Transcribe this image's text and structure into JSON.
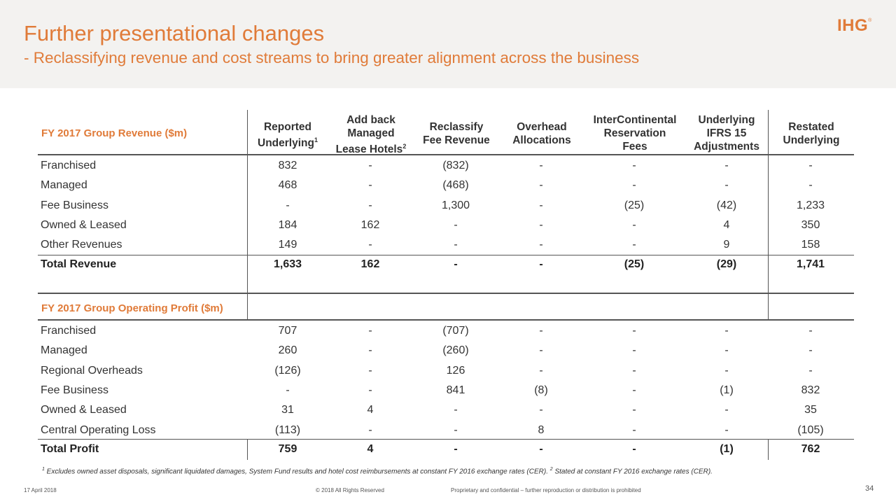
{
  "header": {
    "title": "Further presentational changes",
    "subtitle": "- Reclassifying revenue and cost streams to bring greater alignment across the business",
    "logo_text": "IHG",
    "logo_mark": "®"
  },
  "columns": {
    "reported": {
      "line1": "Reported",
      "line2": "Underlying",
      "sup": "1"
    },
    "addback": {
      "line1": "Add back",
      "line2": "Managed",
      "line3": "Lease Hotels",
      "sup": "2"
    },
    "reclassify": {
      "line1": "Reclassify",
      "line2": "Fee Revenue"
    },
    "overhead": {
      "line1": "Overhead",
      "line2": "Allocations"
    },
    "interconti": {
      "line1": "InterContinental",
      "line2": "Reservation",
      "line3": "Fees"
    },
    "ifrs": {
      "line1": "Underlying",
      "line2": "IFRS 15",
      "line3": "Adjustments"
    },
    "restated": {
      "line1": "Restated",
      "line2": "Underlying"
    }
  },
  "revenue": {
    "title": "FY 2017 Group Revenue ($m)",
    "rows": [
      {
        "label": "Franchised",
        "values": [
          "832",
          "-",
          "(832)",
          "-",
          "-",
          "-",
          "-"
        ]
      },
      {
        "label": "Managed",
        "values": [
          "468",
          "-",
          "(468)",
          "-",
          "-",
          "-",
          "-"
        ]
      },
      {
        "label": "Fee Business",
        "values": [
          "-",
          "-",
          "1,300",
          "-",
          "(25)",
          "(42)",
          "1,233"
        ]
      },
      {
        "label": "Owned & Leased",
        "values": [
          "184",
          "162",
          "-",
          "-",
          "-",
          "4",
          "350"
        ]
      },
      {
        "label": "Other Revenues",
        "values": [
          "149",
          "-",
          "-",
          "-",
          "-",
          "9",
          "158"
        ]
      }
    ],
    "total": {
      "label": "Total Revenue",
      "values": [
        "1,633",
        "162",
        "-",
        "-",
        "(25)",
        "(29)",
        "1,741"
      ]
    }
  },
  "profit": {
    "title": "FY 2017 Group Operating Profit ($m)",
    "rows": [
      {
        "label": "Franchised",
        "values": [
          "707",
          "-",
          "(707)",
          "-",
          "-",
          "-",
          "-"
        ]
      },
      {
        "label": "Managed",
        "values": [
          "260",
          "-",
          "(260)",
          "-",
          "-",
          "-",
          "-"
        ]
      },
      {
        "label": "Regional Overheads",
        "values": [
          "(126)",
          "-",
          "126",
          "-",
          "-",
          "-",
          "-"
        ]
      },
      {
        "label": "Fee Business",
        "values": [
          "-",
          "-",
          "841",
          "(8)",
          "-",
          "(1)",
          "832"
        ]
      },
      {
        "label": "Owned & Leased",
        "values": [
          "31",
          "4",
          "-",
          "-",
          "-",
          "-",
          "35"
        ]
      },
      {
        "label": "Central Operating Loss",
        "values": [
          "(113)",
          "-",
          "-",
          "8",
          "-",
          "-",
          "(105)"
        ]
      }
    ],
    "total": {
      "label": "Total Profit",
      "values": [
        "759",
        "4",
        "-",
        "-",
        "-",
        "(1)",
        "762"
      ]
    }
  },
  "footnote": {
    "sup1": "1",
    "text1": " Excludes owned asset disposals, significant liquidated damages, System Fund results and hotel cost reimbursements at constant FY 2016 exchange rates (CER). ",
    "sup2": "2",
    "text2": " Stated at constant FY 2016 exchange rates (CER)."
  },
  "footer": {
    "date": "17 April 2018",
    "copyright": "© 2018 All Rights Reserved",
    "confidential": "Proprietary and confidential – further reproduction or distribution is prohibited",
    "page": "34"
  },
  "colors": {
    "accent": "#e07b39",
    "text": "#333333",
    "band": "#f3f2f0"
  }
}
